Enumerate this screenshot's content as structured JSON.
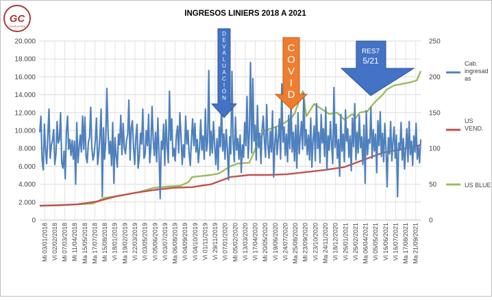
{
  "logo": {
    "text": "GC",
    "caption": "CONSULTORA"
  },
  "chart_data": {
    "type": "line",
    "title": "INGRESOS LINIERS 2018 A 2021",
    "left_axis": {
      "min": 0,
      "max": 20000,
      "step": 2000,
      "ticks": [
        "0",
        "2.000",
        "4.000",
        "6.000",
        "8.000",
        "10.000",
        "12.000",
        "14.000",
        "16.000",
        "18.000",
        "20.000"
      ]
    },
    "right_axis": {
      "min": 0,
      "max": 250,
      "step": 50,
      "ticks": [
        "0",
        "50",
        "100",
        "150",
        "200",
        "250"
      ]
    },
    "x_ticks": [
      "Mi 03/01/2018",
      "Vi 02/02/2018",
      "Mi 07/03/2018",
      "Mi 11/04/2018",
      "Ma 15/05/2018",
      "Ma 17/07/2018",
      "Mi 15/08/2018",
      "Vi 18/01/2019",
      "Ma 19/02/2019",
      "Vi 22/03/2019",
      "Vi 03/05/2019",
      "Vi 05/06/2019",
      "Vi 03/07/2019",
      "Ma 06/08/2019",
      "Vi 04/09/2019",
      "Vi 04/10/2019",
      "Vi 01/11/2019",
      "Vi 29/11/2019",
      "Vi 07/01/2020",
      "Mi 05/02/2020",
      "Vi 13/03/2020",
      "Vi 17/04/2020",
      "Mi 20/05/2020",
      "Vi 19/06/2020",
      "Vi 24/07/2020",
      "Ma 25/08/2020",
      "Mi 23/09/2020",
      "Vi 23/10/2020",
      "Ma 24/11/2020",
      "Vi 18/12/2020",
      "Vi 26/01/2021",
      "Vi 26/02/2021",
      "Ma 06/04/2021",
      "Vi 05/05/2021",
      "Vi 16/06/2021",
      "Vi 16/07/2021",
      "Ma 17/08/2021",
      "Ma 21/09/2021"
    ],
    "series": [
      {
        "name": "Cab. ingresadas",
        "label_lines": [
          "Cab.",
          "ingresad",
          "as"
        ],
        "axis": "left",
        "color": "#4f81bd",
        "values": [
          9800,
          11600,
          6800,
          5600,
          10700,
          7900,
          6300,
          9500,
          12400,
          6900,
          8300,
          8900,
          10100,
          6200,
          7400,
          11000,
          8600,
          9000,
          12000,
          6400,
          5800,
          7700,
          4600,
          9900,
          11600,
          7900,
          9000,
          7200,
          8900,
          6800,
          8800,
          4000,
          10900,
          6400,
          8100,
          9500,
          7600,
          11600,
          7900,
          11500,
          7100,
          6400,
          8700,
          9200,
          12600,
          8100,
          6700,
          7400,
          8900,
          11400,
          6200,
          7500,
          9500,
          12400,
          2600,
          10300,
          6800,
          8800,
          14700,
          9800,
          7400,
          8800,
          6100,
          10900,
          4100,
          9200,
          7200,
          5900,
          9600,
          8400,
          11700,
          7300,
          10800,
          8100,
          7400,
          8900,
          9600,
          13400,
          6700,
          10300,
          11100,
          8100,
          6200,
          9200,
          10700,
          5800,
          7000,
          9700,
          8500,
          12400,
          6900,
          7300,
          10000,
          8300,
          11800,
          6400,
          8100,
          12700,
          9000,
          7200,
          9800,
          6500,
          11400,
          7300,
          2400,
          8800,
          7900,
          10700,
          6100,
          11200,
          8300,
          6400,
          14400,
          8900,
          11300,
          7100,
          8000,
          6600,
          9400,
          10500,
          7500,
          12000,
          9400,
          6200,
          8400,
          7000,
          11600,
          8500,
          10000,
          7400,
          6100,
          9000,
          11300,
          8300,
          10800,
          7600,
          9000,
          6400,
          8100,
          11200,
          7800,
          9400,
          6800,
          12400,
          7700,
          8700,
          16700,
          7200,
          9900,
          7500,
          11000,
          8400,
          6200,
          9100,
          5600,
          10400,
          8200,
          12800,
          7700,
          9600,
          6800,
          10100,
          8000,
          4500,
          9300,
          7400,
          16600,
          8700,
          6500,
          11500,
          7800,
          9100,
          6800,
          9500,
          5300,
          8400,
          7000,
          10900,
          8300,
          13800,
          6900,
          9700,
          17600,
          7500,
          15800,
          8800,
          10600,
          6700,
          12800,
          8100,
          9700,
          6300,
          10100,
          11600,
          8800,
          7000,
          12900,
          8400,
          6900,
          9900,
          7600,
          12200,
          4800,
          8500,
          10400,
          7300,
          9100,
          11300,
          6800,
          15200,
          8700,
          10400,
          7200,
          9600,
          6500,
          11700,
          8000,
          13100,
          7600,
          9800,
          6600,
          10600,
          5800,
          12000,
          7400,
          9200,
          11000,
          7900,
          14200,
          8300,
          10100,
          7300,
          9500,
          6700,
          11400,
          5900,
          8900,
          10500,
          6600,
          13000,
          8000,
          9800,
          6400,
          11800,
          8600,
          10200,
          7100,
          12600,
          5600,
          9400,
          7800,
          11000,
          8500,
          6300,
          14800,
          8100,
          10700,
          6900,
          9000,
          4900,
          11800,
          7700,
          9600,
          6500,
          12300,
          8800,
          10200,
          7000,
          9400,
          5500,
          11400,
          8200,
          13000,
          6700,
          9800,
          7500,
          11700,
          8100,
          9300,
          6200,
          10600,
          4100,
          12200,
          7300,
          9000,
          8600,
          12600,
          6900,
          10100,
          7700,
          9600,
          5300,
          11100,
          8300,
          12100,
          7100,
          9700,
          6500,
          10800,
          8000,
          3700,
          9200,
          7400,
          11000,
          6600,
          8700,
          10400,
          6900,
          9500,
          2600,
          8600,
          7800,
          10900,
          6700,
          9100,
          5700,
          7800,
          10200,
          6500,
          11000,
          7300,
          8800,
          6100,
          9400,
          7600,
          10800,
          6800,
          8200,
          6400,
          9000
        ]
      },
      {
        "name": "US VEND.",
        "label_lines": [
          "US",
          "VEND."
        ],
        "axis": "right",
        "color": "#c0504d",
        "x": [
          0,
          0.05,
          0.1,
          0.15,
          0.2,
          0.25,
          0.3,
          0.35,
          0.4,
          0.45,
          0.5,
          0.55,
          0.6,
          0.65,
          0.7,
          0.75,
          0.8,
          0.85,
          0.9,
          0.95,
          1.0
        ],
        "values": [
          20,
          20.6,
          22,
          26,
          33,
          38,
          42,
          45,
          46,
          50,
          60,
          63,
          63,
          64,
          67,
          70,
          74,
          84,
          94,
          99,
          105
        ]
      },
      {
        "name": "US BLUE",
        "label_lines": [
          "US BLUE"
        ],
        "axis": "right",
        "color": "#9bbb59",
        "x": [
          0,
          0.05,
          0.1,
          0.14,
          0.17,
          0.22,
          0.26,
          0.3,
          0.34,
          0.37,
          0.39,
          0.4,
          0.45,
          0.47,
          0.5,
          0.52,
          0.55,
          0.575,
          0.59,
          0.62,
          0.64,
          0.66,
          0.67,
          0.69,
          0.7,
          0.72,
          0.74,
          0.76,
          0.78,
          0.8,
          0.82,
          0.83,
          0.84,
          0.86,
          0.88,
          0.9,
          0.91,
          0.93,
          0.95,
          0.97,
          0.99,
          1.0
        ],
        "values": [
          20,
          21,
          22,
          23,
          31,
          35,
          39,
          45,
          47,
          48,
          53,
          60,
          63,
          65,
          75,
          79,
          80,
          110,
          125,
          130,
          135,
          142,
          150,
          180,
          145,
          162,
          155,
          148,
          150,
          140,
          148,
          143,
          150,
          152,
          165,
          175,
          182,
          188,
          190,
          192,
          195,
          208
        ]
      }
    ],
    "annotations": [
      {
        "text": "DEVALUACIÓN",
        "style": "vertical-letters",
        "color": "#4472c4"
      },
      {
        "text": "COVID",
        "style": "vertical-letters",
        "color": "#ed7d31"
      },
      {
        "text_lines": [
          "RES7",
          "5/21"
        ],
        "style": "down-arrow",
        "color": "#4472c4"
      }
    ],
    "grid": true,
    "legend_position": "right"
  }
}
